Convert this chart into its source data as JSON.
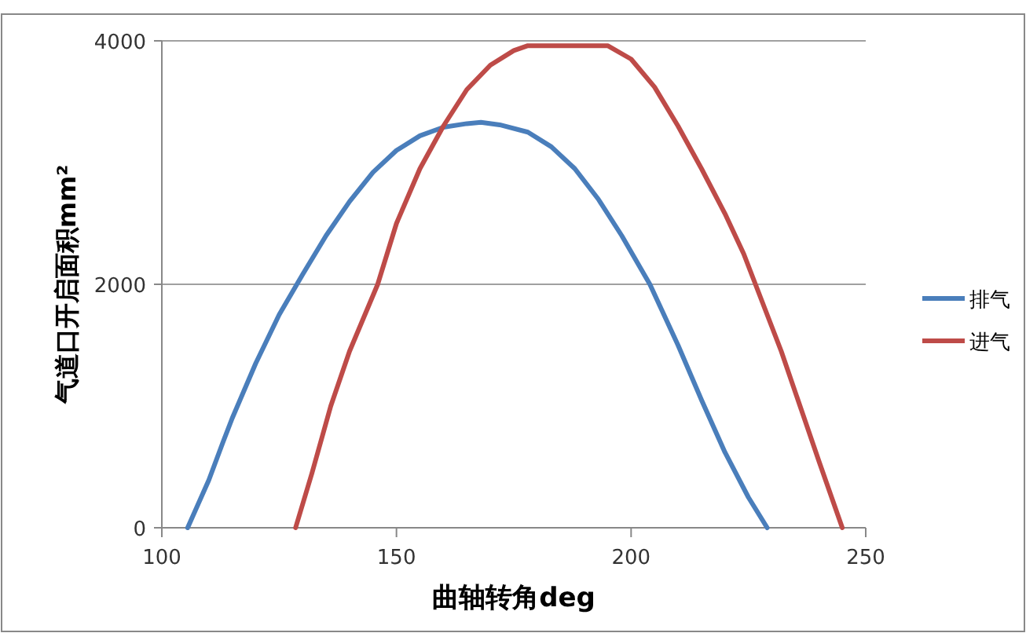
{
  "chart_data": {
    "type": "line",
    "xlabel": "曲轴转角deg",
    "ylabel": "气道口开启面积mm²",
    "xlim": [
      100,
      250
    ],
    "xticks": [
      100,
      150,
      200,
      250
    ],
    "ylim": [
      0,
      4000
    ],
    "yticks": [
      0,
      2000,
      4000
    ],
    "grid": "y",
    "legend": "right",
    "marker": "none",
    "line_style": "solid",
    "series": [
      {
        "name": "排气",
        "color": "#4a7ebb",
        "x": [
          105.5,
          110,
          113,
          115,
          120,
          125,
          130,
          135,
          140,
          145,
          150,
          155,
          160,
          165,
          168,
          172,
          178,
          183,
          188,
          193,
          198,
          204,
          210,
          215,
          220,
          225,
          229
        ],
        "values": [
          0,
          390,
          700,
          900,
          1350,
          1750,
          2080,
          2400,
          2680,
          2920,
          3100,
          3220,
          3290,
          3320,
          3330,
          3310,
          3250,
          3130,
          2950,
          2700,
          2400,
          2000,
          1500,
          1050,
          620,
          250,
          0
        ]
      },
      {
        "name": "进气",
        "color": "#be4b48",
        "x": [
          128.5,
          132,
          136,
          140,
          146,
          150,
          155,
          160,
          165,
          170,
          175,
          178,
          195,
          200,
          205,
          210,
          215,
          220,
          224,
          227,
          232,
          236,
          240,
          245
        ],
        "values": [
          0,
          450,
          1000,
          1450,
          2000,
          2500,
          2950,
          3300,
          3600,
          3800,
          3920,
          3960,
          3960,
          3850,
          3620,
          3300,
          2950,
          2580,
          2250,
          1950,
          1450,
          1000,
          550,
          0
        ]
      }
    ]
  }
}
